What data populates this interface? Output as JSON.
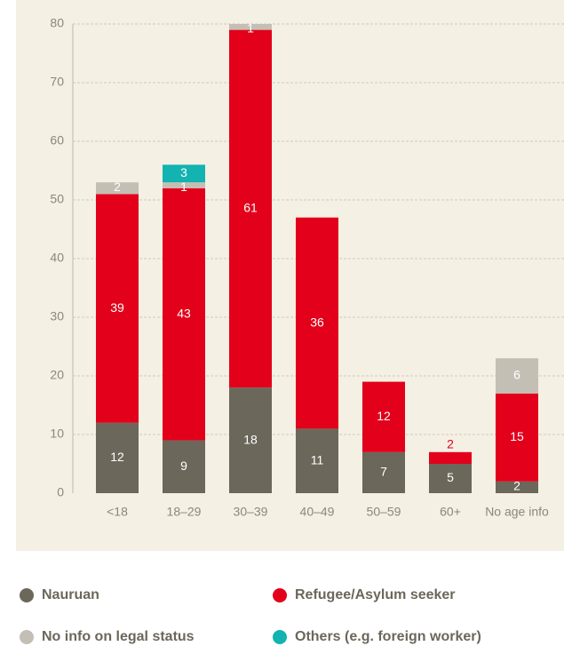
{
  "chart_data": {
    "type": "bar",
    "stacked": true,
    "categories": [
      "<18",
      "18–29",
      "30–39",
      "40–49",
      "50–59",
      "60+",
      "No age info"
    ],
    "series": [
      {
        "name": "Nauruan",
        "color": "#6b675b",
        "values": [
          12,
          9,
          18,
          11,
          7,
          5,
          2
        ]
      },
      {
        "name": "Refugee/Asylum seeker",
        "color": "#e2001a",
        "values": [
          39,
          43,
          61,
          36,
          12,
          2,
          15
        ]
      },
      {
        "name": "No info on legal status",
        "color": "#c4bfb5",
        "values": [
          2,
          1,
          1,
          0,
          0,
          0,
          6
        ]
      },
      {
        "name": "Others (e.g. foreign worker)",
        "color": "#12b3b0",
        "values": [
          0,
          3,
          0,
          0,
          0,
          0,
          0
        ]
      }
    ],
    "ylim": [
      0,
      80
    ],
    "yticks": [
      0,
      10,
      20,
      30,
      40,
      50,
      60,
      70,
      80
    ],
    "grid": true
  }
}
